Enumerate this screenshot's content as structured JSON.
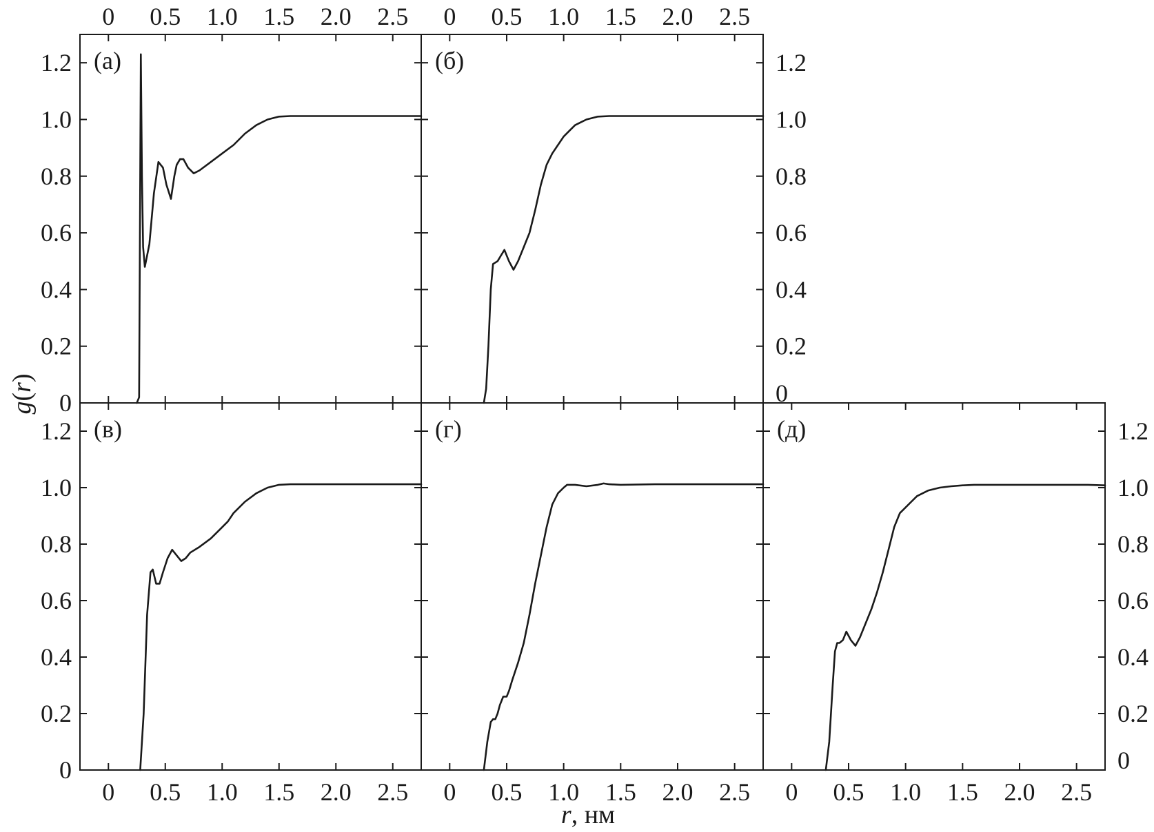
{
  "chart_data": {
    "type": "line",
    "xlabel": "r, нм",
    "xlabel_var": "r",
    "xlabel_unit": ", нм",
    "ylabel": "g(r)",
    "ylabel_var_g": "g",
    "ylabel_open": "(",
    "ylabel_var_r": "r",
    "ylabel_close": ")",
    "xlim": [
      -0.25,
      2.75
    ],
    "ylim": [
      0,
      1.3
    ],
    "x_ticks": [
      0,
      0.5,
      1.0,
      1.5,
      2.0,
      2.5
    ],
    "x_tick_labels": [
      "0",
      "0.5",
      "1.0",
      "1.5",
      "2.0",
      "2.5"
    ],
    "y_ticks": [
      0,
      0.2,
      0.4,
      0.6,
      0.8,
      1.0,
      1.2
    ],
    "y_tick_labels": [
      "0",
      "0.2",
      "0.4",
      "0.6",
      "0.8",
      "1.0",
      "1.2"
    ],
    "panels": [
      {
        "label": "(а)",
        "x": [
          0.25,
          0.27,
          0.285,
          0.295,
          0.305,
          0.32,
          0.36,
          0.4,
          0.44,
          0.48,
          0.51,
          0.55,
          0.58,
          0.6,
          0.63,
          0.66,
          0.7,
          0.75,
          0.8,
          0.9,
          1.0,
          1.1,
          1.2,
          1.3,
          1.4,
          1.5,
          1.6,
          1.8,
          2.0,
          2.2,
          2.4,
          2.6,
          2.75
        ],
        "y": [
          0,
          0.02,
          1.23,
          0.8,
          0.55,
          0.48,
          0.56,
          0.74,
          0.85,
          0.83,
          0.77,
          0.72,
          0.8,
          0.84,
          0.86,
          0.86,
          0.83,
          0.81,
          0.82,
          0.85,
          0.88,
          0.91,
          0.95,
          0.98,
          1.0,
          1.01,
          1.012,
          1.012,
          1.012,
          1.012,
          1.012,
          1.012,
          1.012
        ]
      },
      {
        "label": "(б)",
        "x": [
          0.3,
          0.32,
          0.34,
          0.36,
          0.38,
          0.42,
          0.45,
          0.48,
          0.52,
          0.56,
          0.6,
          0.65,
          0.7,
          0.75,
          0.8,
          0.85,
          0.9,
          0.95,
          1.0,
          1.05,
          1.1,
          1.15,
          1.2,
          1.3,
          1.4,
          1.5,
          1.6,
          1.8,
          2.0,
          2.2,
          2.4,
          2.6,
          2.75
        ],
        "y": [
          0,
          0.05,
          0.2,
          0.4,
          0.49,
          0.5,
          0.52,
          0.54,
          0.5,
          0.47,
          0.5,
          0.55,
          0.6,
          0.68,
          0.77,
          0.84,
          0.88,
          0.91,
          0.94,
          0.96,
          0.98,
          0.99,
          1.0,
          1.01,
          1.012,
          1.012,
          1.012,
          1.012,
          1.012,
          1.012,
          1.012,
          1.012,
          1.012
        ]
      },
      {
        "label": "(в)",
        "x": [
          0.28,
          0.31,
          0.34,
          0.37,
          0.39,
          0.42,
          0.45,
          0.48,
          0.52,
          0.56,
          0.6,
          0.64,
          0.68,
          0.72,
          0.8,
          0.9,
          1.0,
          1.05,
          1.1,
          1.2,
          1.3,
          1.4,
          1.5,
          1.6,
          1.8,
          2.0,
          2.2,
          2.4,
          2.6,
          2.75
        ],
        "y": [
          0,
          0.2,
          0.55,
          0.7,
          0.71,
          0.66,
          0.66,
          0.7,
          0.75,
          0.78,
          0.76,
          0.74,
          0.75,
          0.77,
          0.79,
          0.82,
          0.86,
          0.88,
          0.91,
          0.95,
          0.98,
          1.0,
          1.01,
          1.012,
          1.012,
          1.012,
          1.012,
          1.012,
          1.012,
          1.012
        ]
      },
      {
        "label": "(г)",
        "x": [
          0.3,
          0.33,
          0.36,
          0.38,
          0.4,
          0.42,
          0.44,
          0.47,
          0.5,
          0.52,
          0.55,
          0.6,
          0.65,
          0.7,
          0.75,
          0.8,
          0.85,
          0.9,
          0.95,
          1.0,
          1.03,
          1.06,
          1.1,
          1.2,
          1.3,
          1.35,
          1.4,
          1.5,
          1.8,
          2.0,
          2.2,
          2.4,
          2.6,
          2.75
        ],
        "y": [
          0,
          0.1,
          0.17,
          0.18,
          0.18,
          0.2,
          0.23,
          0.26,
          0.26,
          0.28,
          0.32,
          0.38,
          0.45,
          0.55,
          0.66,
          0.76,
          0.86,
          0.94,
          0.98,
          1.0,
          1.01,
          1.01,
          1.01,
          1.005,
          1.01,
          1.015,
          1.012,
          1.01,
          1.012,
          1.012,
          1.012,
          1.012,
          1.012,
          1.012
        ]
      },
      {
        "label": "(д)",
        "x": [
          0.3,
          0.33,
          0.36,
          0.38,
          0.4,
          0.42,
          0.45,
          0.48,
          0.52,
          0.56,
          0.6,
          0.65,
          0.7,
          0.75,
          0.8,
          0.85,
          0.9,
          0.95,
          1.0,
          1.05,
          1.1,
          1.2,
          1.3,
          1.4,
          1.5,
          1.6,
          1.8,
          2.0,
          2.2,
          2.4,
          2.6,
          2.75
        ],
        "y": [
          0,
          0.1,
          0.3,
          0.42,
          0.45,
          0.45,
          0.46,
          0.49,
          0.46,
          0.44,
          0.47,
          0.52,
          0.57,
          0.63,
          0.7,
          0.78,
          0.86,
          0.91,
          0.93,
          0.95,
          0.97,
          0.99,
          1.0,
          1.005,
          1.008,
          1.01,
          1.01,
          1.01,
          1.01,
          1.01,
          1.01,
          1.008
        ]
      }
    ]
  }
}
